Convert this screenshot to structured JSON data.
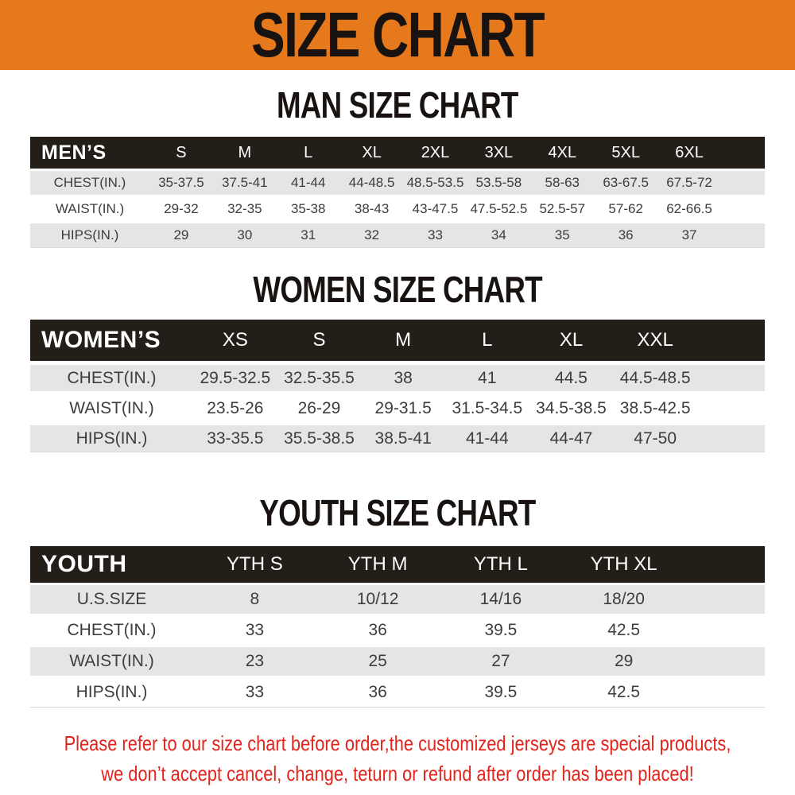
{
  "banner": {
    "title": "SIZE CHART",
    "background_color": "#e6791c"
  },
  "chart_data": [
    {
      "type": "table",
      "title": "MAN SIZE CHART",
      "header_label": "MEN’S",
      "columns": [
        "S",
        "M",
        "L",
        "XL",
        "2XL",
        "3XL",
        "4XL",
        "5XL",
        "6XL"
      ],
      "rows": [
        {
          "label": "CHEST(IN.)",
          "values": [
            "35-37.5",
            "37.5-41",
            "41-44",
            "44-48.5",
            "48.5-53.5",
            "53.5-58",
            "58-63",
            "63-67.5",
            "67.5-72"
          ]
        },
        {
          "label": "WAIST(IN.)",
          "values": [
            "29-32",
            "32-35",
            "35-38",
            "38-43",
            "43-47.5",
            "47.5-52.5",
            "52.5-57",
            "57-62",
            "62-66.5"
          ]
        },
        {
          "label": "HIPS(IN.)",
          "values": [
            "29",
            "30",
            "31",
            "32",
            "33",
            "34",
            "35",
            "36",
            "37"
          ]
        }
      ]
    },
    {
      "type": "table",
      "title": "WOMEN SIZE CHART",
      "header_label": "WOMEN’S",
      "columns": [
        "XS",
        "S",
        "M",
        "L",
        "XL",
        "XXL"
      ],
      "rows": [
        {
          "label": "CHEST(IN.)",
          "values": [
            "29.5-32.5",
            "32.5-35.5",
            "38",
            "41",
            "44.5",
            "44.5-48.5"
          ]
        },
        {
          "label": "WAIST(IN.)",
          "values": [
            "23.5-26",
            "26-29",
            "29-31.5",
            "31.5-34.5",
            "34.5-38.5",
            "38.5-42.5"
          ]
        },
        {
          "label": "HIPS(IN.)",
          "values": [
            "33-35.5",
            "35.5-38.5",
            "38.5-41",
            "41-44",
            "44-47",
            "47-50"
          ]
        }
      ]
    },
    {
      "type": "table",
      "title": "YOUTH SIZE CHART",
      "header_label": "YOUTH",
      "columns": [
        "YTH S",
        "YTH M",
        "YTH L",
        "YTH XL"
      ],
      "rows": [
        {
          "label": "U.S.SIZE",
          "values": [
            "8",
            "10/12",
            "14/16",
            "18/20"
          ]
        },
        {
          "label": "CHEST(IN.)",
          "values": [
            "33",
            "36",
            "39.5",
            "42.5"
          ]
        },
        {
          "label": "WAIST(IN.)",
          "values": [
            "23",
            "25",
            "27",
            "29"
          ]
        },
        {
          "label": "HIPS(IN.)",
          "values": [
            "33",
            "36",
            "39.5",
            "42.5"
          ]
        }
      ]
    }
  ],
  "footer": {
    "line1": "Please refer to our size chart before order,the customized jerseys are special products,",
    "line2": "we don’t accept cancel, change, teturn or refund after order has been placed!",
    "text_color": "#e2241c"
  },
  "colors": {
    "banner_orange": "#e6791c",
    "header_bar": "#241e19",
    "stripe_row": "#e5e5e5"
  }
}
